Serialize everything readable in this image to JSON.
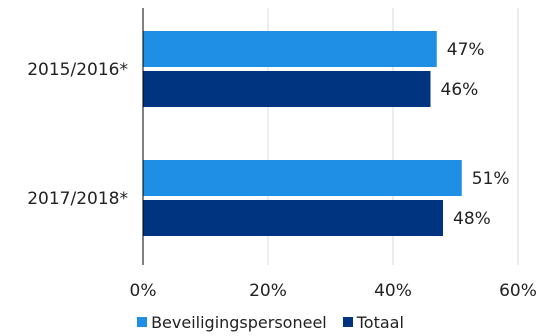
{
  "chart_data": {
    "type": "bar",
    "orientation": "horizontal",
    "title": "",
    "categories": [
      "2015/2016*",
      "2017/2018*"
    ],
    "series": [
      {
        "name": "Beveiligingspersoneel",
        "values": [
          47,
          51
        ],
        "labels": [
          "47%",
          "51%"
        ],
        "color": "#1f8fe5"
      },
      {
        "name": "Totaal",
        "values": [
          46,
          48
        ],
        "labels": [
          "46%",
          "48%"
        ],
        "color": "#003380"
      }
    ],
    "xlim": [
      0,
      60
    ],
    "xticks": [
      0,
      20,
      40,
      60
    ],
    "xtick_labels": [
      "0%",
      "20%",
      "40%",
      "60%"
    ],
    "grid": true,
    "legend_position": "bottom"
  }
}
